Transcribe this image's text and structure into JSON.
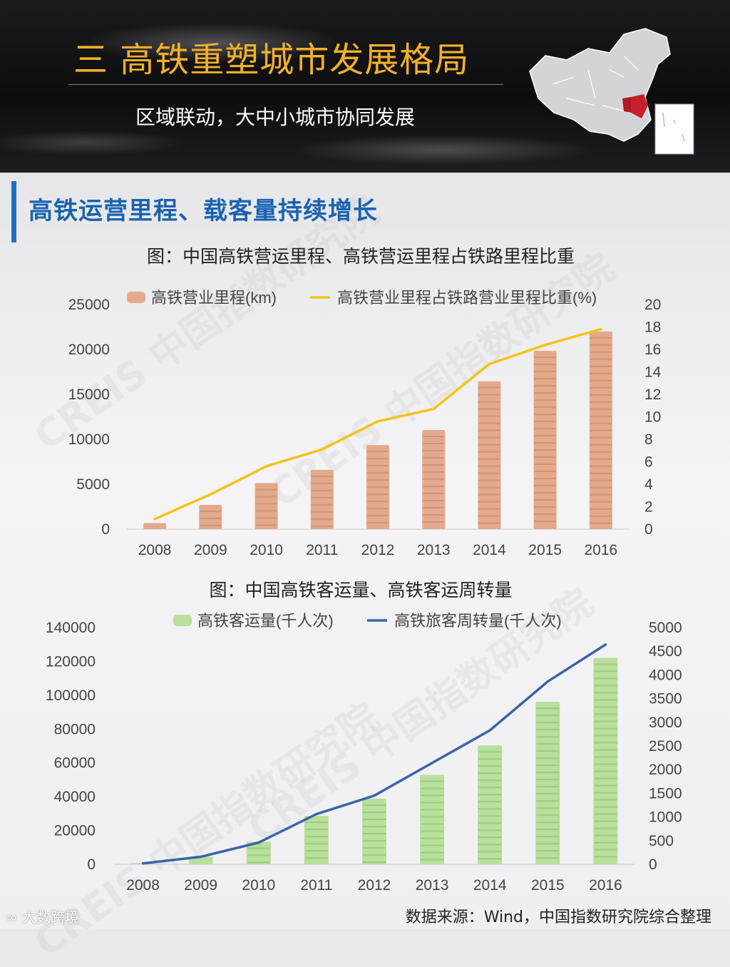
{
  "banner": {
    "title": "三 高铁重塑城市发展格局",
    "subtitle": "区域联动，大中小城市协同发展"
  },
  "section": {
    "title": "高铁运营里程、载客量持续增长"
  },
  "watermark": {
    "text": "CREIS 中国指数研究院"
  },
  "footer": {
    "logo_text": "大数跨境",
    "source": "数据来源：Wind，中国指数研究院综合整理"
  },
  "colors": {
    "accent_blue": "#1a63b0",
    "title_gold": "#f0b02a",
    "bar_orange": "#e3a98c",
    "line_yellow": "#f2c318",
    "bar_green": "#b9df9c",
    "line_blue": "#3a64a8"
  },
  "chart_data": [
    {
      "type": "bar",
      "title": "图：中国高铁营运里程、高铁营运里程占铁路里程比重",
      "categories": [
        "2008",
        "2009",
        "2010",
        "2011",
        "2012",
        "2013",
        "2014",
        "2015",
        "2016"
      ],
      "series": [
        {
          "name": "高铁营业里程(km)",
          "type": "bar",
          "axis": "left",
          "values": [
            672,
            2699,
            5133,
            6601,
            9356,
            11028,
            16456,
            19838,
            22000
          ]
        },
        {
          "name": "高铁营业里程占铁路营业里程比重(%)",
          "type": "line",
          "axis": "right",
          "values": [
            0.9,
            3.1,
            5.6,
            7.1,
            9.6,
            10.7,
            14.7,
            16.4,
            17.8
          ]
        }
      ],
      "ylim_left": [
        0,
        25000
      ],
      "yticks_left": [
        "0",
        "5000",
        "10000",
        "15000",
        "20000",
        "25000"
      ],
      "ylim_right": [
        0,
        20
      ],
      "yticks_right": [
        "0",
        "2",
        "4",
        "6",
        "8",
        "10",
        "12",
        "14",
        "16",
        "18",
        "20"
      ],
      "legend": "top"
    },
    {
      "type": "bar",
      "title": "图：中国高铁客运量、高铁客运周转量",
      "categories": [
        "2008",
        "2009",
        "2010",
        "2011",
        "2012",
        "2013",
        "2014",
        "2015",
        "2016"
      ],
      "series": [
        {
          "name": "高铁客运量(千人次)",
          "type": "bar",
          "axis": "left",
          "values": [
            700,
            4600,
            13300,
            28600,
            38800,
            52900,
            70300,
            96100,
            122100
          ]
        },
        {
          "name": "高铁旅客周转量(千人次)",
          "type": "line",
          "axis": "right",
          "values": [
            20,
            160,
            460,
            1060,
            1450,
            2140,
            2830,
            3860,
            4640
          ]
        }
      ],
      "ylim_left": [
        0,
        140000
      ],
      "yticks_left": [
        "0",
        "20000",
        "40000",
        "60000",
        "80000",
        "100000",
        "120000",
        "140000"
      ],
      "ylim_right": [
        0,
        5000
      ],
      "yticks_right": [
        "0",
        "500",
        "1000",
        "1500",
        "2000",
        "2500",
        "3000",
        "3500",
        "4000",
        "4500",
        "5000"
      ],
      "legend": "top"
    }
  ]
}
